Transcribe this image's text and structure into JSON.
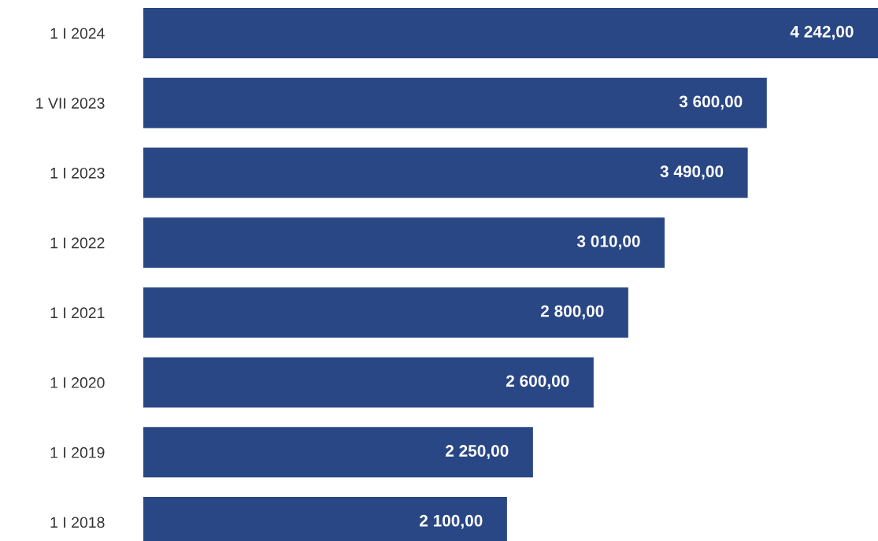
{
  "chart_data": {
    "type": "bar",
    "orientation": "horizontal",
    "categories": [
      "1 I 2024",
      "1 VII 2023",
      "1 I 2023",
      "1 I 2022",
      "1 I 2021",
      "1 I 2020",
      "1 I 2019",
      "1 I 2018"
    ],
    "values": [
      4242,
      3600,
      3490,
      3010,
      2800,
      2600,
      2250,
      2100
    ],
    "value_labels": [
      "4 242,00",
      "3 600,00",
      "3 490,00",
      "3 010,00",
      "2 800,00",
      "2 600,00",
      "2 250,00",
      "2 100,00"
    ],
    "color": "#2a4785",
    "grid": false,
    "legend": false
  }
}
